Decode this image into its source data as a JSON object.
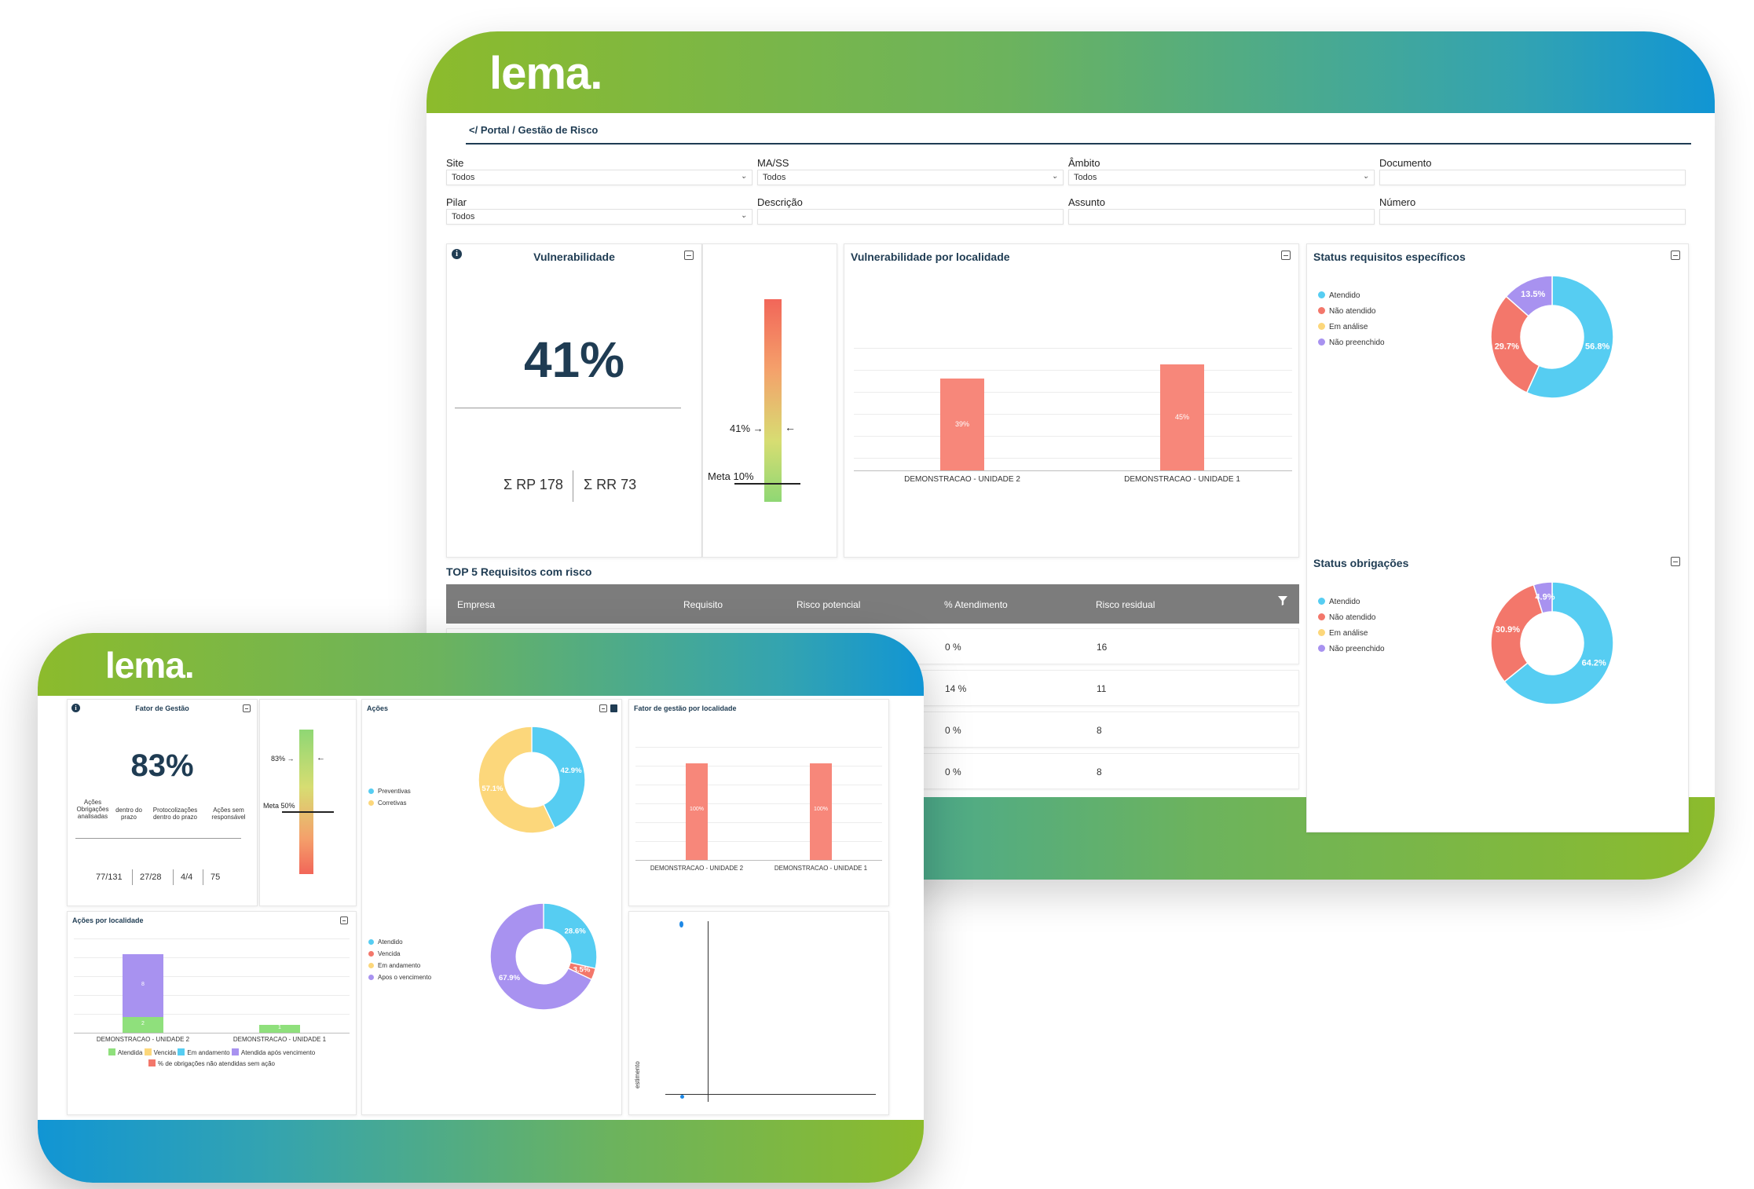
{
  "colors": {
    "gradient_green": "#8cbb2c",
    "gradient_blue": "#1195d4",
    "bar": "#f7877a",
    "navy": "#1f3c53",
    "atendido": "#56cdf2",
    "nao_atendido": "#f3776b",
    "em_analise": "#fcd77b",
    "nao_preenchido": "#a892f0"
  },
  "back": {
    "logo": "lema.",
    "breadcrumb": "</ Portal / Gestão de Risco",
    "filters": {
      "site": {
        "label": "Site",
        "value": "Todos"
      },
      "mass": {
        "label": "MA/SS",
        "value": "Todos"
      },
      "ambito": {
        "label": "Âmbito",
        "value": "Todos"
      },
      "documento": {
        "label": "Documento",
        "value": ""
      },
      "pilar": {
        "label": "Pilar",
        "value": "Todos"
      },
      "descricao": {
        "label": "Descrição",
        "value": ""
      },
      "assunto": {
        "label": "Assunto",
        "value": ""
      },
      "numero": {
        "label": "Número",
        "value": ""
      }
    },
    "vulnerabilidade": {
      "title": "Vulnerabilidade",
      "value": "41%",
      "rp": "Σ RP 178",
      "rr": "Σ RR 73",
      "gauge_value": 0.41,
      "gauge_label": "41% →",
      "gauge_arrow": "←",
      "meta": 0.1,
      "meta_label": "Meta 10%"
    },
    "vuln_local": {
      "title": "Vulnerabilidade por localidade",
      "chart_data": {
        "type": "bar",
        "categories": [
          "DEMONSTRACAO - UNIDADE 2",
          "DEMONSTRACAO - UNIDADE 1"
        ],
        "values": [
          39,
          45
        ],
        "labels": [
          "39%",
          "45%"
        ],
        "ylim": [
          0,
          60
        ]
      }
    },
    "status_req": {
      "title": "Status requisitos específicos",
      "legend": [
        "Atendido",
        "Não atendido",
        "Em análise",
        "Não preenchido"
      ],
      "chart_data": {
        "type": "pie",
        "labels": [
          "Atendido",
          "Não atendido",
          "Em análise",
          "Não preenchido"
        ],
        "values": [
          56.8,
          29.7,
          0,
          13.5
        ],
        "value_labels": [
          "56.8%",
          "29.7%",
          "",
          "13.5%"
        ]
      }
    },
    "status_obr": {
      "title": "Status obrigações",
      "legend": [
        "Atendido",
        "Não atendido",
        "Em análise",
        "Não preenchido"
      ],
      "chart_data": {
        "type": "pie",
        "labels": [
          "Atendido",
          "Não atendido",
          "Em análise",
          "Não preenchido"
        ],
        "values": [
          64.2,
          30.9,
          0,
          4.9
        ],
        "value_labels": [
          "64.2%",
          "30.9%",
          "",
          "4.9%"
        ]
      }
    },
    "top5": {
      "title": "TOP 5 Requisitos com risco",
      "headers": [
        "Empresa",
        "Requisito",
        "Risco potencial",
        "% Atendimento",
        "Risco residual"
      ],
      "rows": [
        [
          "0 %",
          "16"
        ],
        [
          "14 %",
          "11"
        ],
        [
          "0 %",
          "8"
        ],
        [
          "0 %",
          "8"
        ]
      ]
    }
  },
  "front": {
    "logo": "lema.",
    "fator": {
      "title": "Fator de Gestão",
      "value": "83%",
      "labels": [
        "Ações\nObrigações analisadas",
        "dentro do prazo",
        "Protocolizações dentro do prazo",
        "Ações sem responsável"
      ],
      "numbers": [
        "77/131",
        "27/28",
        "4/4",
        "75"
      ],
      "gauge_value": 0.83,
      "gauge_label": "83% →",
      "gauge_arrow": "←",
      "meta": 0.5,
      "meta_label": "Meta 50%"
    },
    "acoes": {
      "title": "Ações",
      "legend1": [
        "Preventivas",
        "Corretivas"
      ],
      "chart_data1": {
        "type": "pie",
        "labels": [
          "Preventivas",
          "Corretivas"
        ],
        "values": [
          42.9,
          57.1
        ],
        "value_labels": [
          "42.9%",
          "57.1%"
        ]
      },
      "legend2": [
        "Atendido",
        "Vencida",
        "Em andamento",
        "Apos o vencimento"
      ],
      "chart_data2": {
        "type": "pie",
        "labels": [
          "Atendido",
          "Vencida",
          "Em andamento",
          "Apos o vencimento"
        ],
        "values": [
          28.6,
          3.5,
          0,
          67.9
        ],
        "value_labels": [
          "28.6%",
          "3.5%",
          "",
          "67.9%"
        ]
      }
    },
    "fator_local": {
      "title": "Fator de gestão por localidade",
      "chart_data": {
        "type": "bar",
        "categories": [
          "DEMONSTRACAO - UNIDADE 2",
          "DEMONSTRACAO - UNIDADE 1"
        ],
        "values": [
          100,
          100
        ],
        "labels": [
          "100%",
          "100%"
        ],
        "ylim": [
          0,
          130
        ]
      }
    },
    "acoes_local": {
      "title": "Ações por localidade",
      "chart_data": {
        "type": "bar",
        "categories": [
          "DEMONSTRACAO - UNIDADE 2",
          "DEMONSTRACAO - UNIDADE 1"
        ],
        "series": [
          {
            "name": "Atendida",
            "values": [
              2,
              1
            ],
            "labels": [
              "2",
              "1"
            ]
          },
          {
            "name": "Atendida após vencimento",
            "values": [
              8,
              0
            ],
            "labels": [
              "8",
              ""
            ]
          }
        ],
        "ylim": [
          0,
          12
        ]
      },
      "legend": [
        "Atendida",
        "Vencida",
        "Em andamento",
        "Atendida após vencimento",
        "% de obrigações não atendidas sem ação"
      ]
    },
    "scatter": {
      "ylabel": "estimento"
    }
  }
}
